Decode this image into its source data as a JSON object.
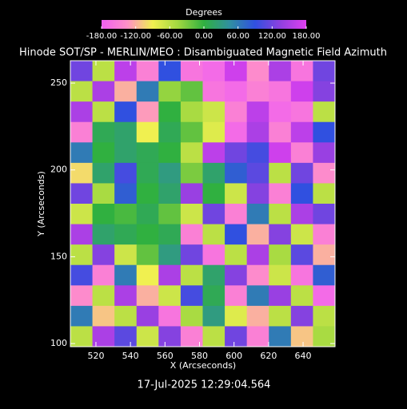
{
  "chart_data": {
    "type": "heatmap",
    "title": "Hinode SOT/SP - MERLIN/MEO : Disambiguated Magnetic Field Azimuth",
    "colorbar_title": "Degrees",
    "x_label": "X (Arcseconds)",
    "y_label": "Y (Arcseconds)",
    "footer": "17-Jul-2025 12:29:04.564",
    "xlim": [
      505.2,
      658.5
    ],
    "ylim": [
      98.2,
      262.9
    ],
    "xticks": [
      520,
      540,
      560,
      580,
      600,
      620,
      640
    ],
    "yticks": [
      100,
      150,
      200,
      250
    ],
    "zlim": [
      -180,
      180
    ],
    "zticks": [
      {
        "value": -180,
        "label": "-180.00"
      },
      {
        "value": -120,
        "label": "-120.00"
      },
      {
        "value": -60,
        "label": "-60.00"
      },
      {
        "value": 0,
        "label": "0.00"
      },
      {
        "value": 60,
        "label": "60.00"
      },
      {
        "value": 120,
        "label": "120.00"
      },
      {
        "value": 180,
        "label": "180.00"
      }
    ],
    "colormap": [
      "#f060f0",
      "#ff90c8",
      "#f0f050",
      "#a0d840",
      "#30b040",
      "#3090a0",
      "#3050e0",
      "#9040e0",
      "#e040f0"
    ],
    "z": [
      [
        120,
        -60,
        160,
        -150,
        90,
        -160,
        -170,
        170,
        -140,
        150,
        -160,
        120
      ],
      [
        -60,
        150,
        -120,
        60,
        -40,
        -20,
        -160,
        -170,
        -150,
        -160,
        170,
        130
      ],
      [
        150,
        -60,
        90,
        -130,
        0,
        -50,
        -70,
        -150,
        160,
        -170,
        -160,
        -60
      ],
      [
        -150,
        10,
        20,
        -90,
        10,
        -20,
        -80,
        -170,
        150,
        -150,
        160,
        90
      ],
      [
        60,
        0,
        20,
        10,
        0,
        -60,
        160,
        120,
        100,
        170,
        -150,
        140
      ],
      [
        -100,
        20,
        100,
        10,
        30,
        -30,
        20,
        80,
        110,
        -60,
        120,
        -140
      ],
      [
        120,
        -50,
        80,
        0,
        20,
        140,
        0,
        -70,
        130,
        -150,
        90,
        -60
      ],
      [
        -70,
        0,
        -10,
        10,
        -20,
        -70,
        120,
        -150,
        60,
        -60,
        150,
        120
      ],
      [
        150,
        20,
        10,
        0,
        10,
        -150,
        -60,
        90,
        -120,
        130,
        -70,
        -150
      ],
      [
        -60,
        130,
        -70,
        -20,
        30,
        120,
        -160,
        -60,
        150,
        -50,
        110,
        -120
      ],
      [
        100,
        -150,
        60,
        -90,
        150,
        -60,
        20,
        130,
        -140,
        -70,
        -160,
        80
      ],
      [
        -140,
        -60,
        150,
        -120,
        -70,
        100,
        10,
        -150,
        60,
        140,
        -60,
        -170
      ],
      [
        60,
        -110,
        -60,
        140,
        -160,
        -50,
        30,
        -80,
        -120,
        -60,
        130,
        -60
      ],
      [
        -60,
        150,
        110,
        -70,
        130,
        -150,
        -60,
        120,
        -150,
        60,
        -110,
        -50
      ]
    ]
  }
}
